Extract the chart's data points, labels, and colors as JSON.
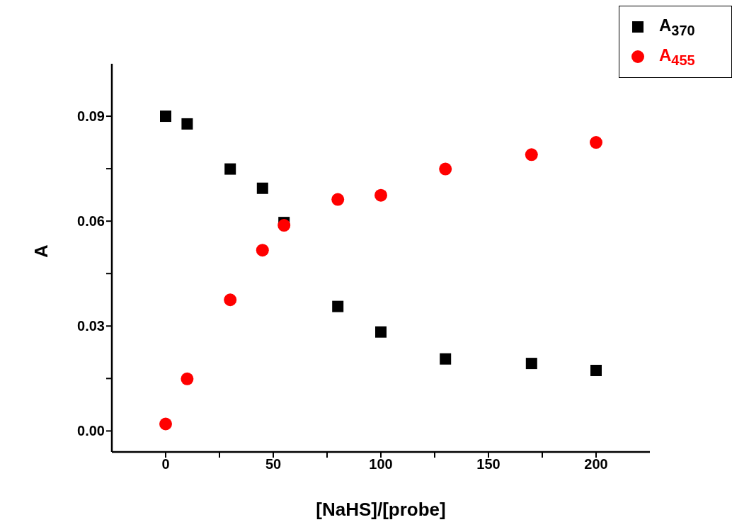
{
  "chart_data": {
    "type": "scatter",
    "xlabel": "[NaHS]/[probe]",
    "ylabel": "A",
    "xlim": [
      -25,
      225
    ],
    "xticks": [
      0,
      {
        "value": 25,
        "label": null
      },
      50,
      {
        "value": 75,
        "label": null
      },
      100,
      {
        "value": 125,
        "label": null
      },
      150,
      {
        "value": 175,
        "label": null
      },
      200
    ],
    "ylim": [
      -0.006,
      0.105
    ],
    "yticks": [
      {
        "value": 0,
        "label": "0.00"
      },
      {
        "value": 0.015,
        "label": null
      },
      {
        "value": 0.03,
        "label": "0.03"
      },
      {
        "value": 0.045,
        "label": null
      },
      {
        "value": 0.06,
        "label": "0.06"
      },
      {
        "value": 0.075,
        "label": null
      },
      {
        "value": 0.09,
        "label": "0.09"
      }
    ],
    "x": [
      0,
      10,
      30,
      45,
      55,
      80,
      100,
      130,
      170,
      200
    ],
    "grid": false,
    "legend": "top right",
    "series": [
      {
        "name": "A$_{370}$",
        "color": "#000000",
        "marker": "square",
        "values": [
          0.09,
          0.0878,
          0.0749,
          0.0694,
          0.0596,
          0.0356,
          0.0283,
          0.0206,
          0.0193,
          0.0173
        ]
      },
      {
        "name": "A$_{455}$",
        "color": "#ff0000",
        "marker": "circle",
        "values": [
          0.002,
          0.0149,
          0.0375,
          0.0517,
          0.0588,
          0.0662,
          0.0674,
          0.0749,
          0.079,
          0.0825
        ]
      }
    ]
  }
}
